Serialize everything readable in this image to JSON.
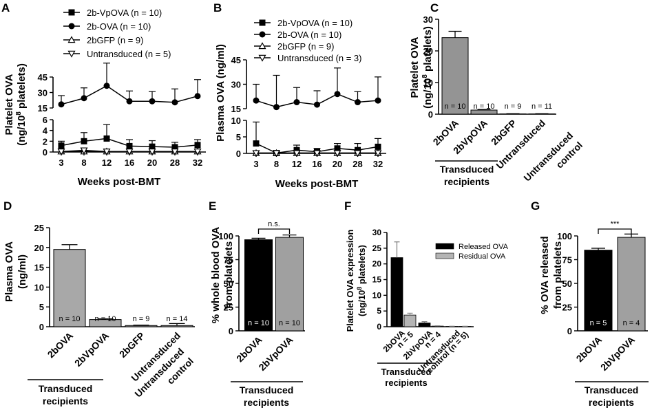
{
  "figure": {
    "background": "#ffffff"
  },
  "chart_data": [
    {
      "id": "A",
      "type": "line",
      "panel": "A",
      "ylabel": "Platelet OVA (ng/10⁸ platelets)",
      "ylabel_l1": "Platelet OVA",
      "ylabel_l2a": "(ng/10",
      "ylabel_l2sup": "8",
      "ylabel_l2b": " platelets)",
      "xlabel": "Weeks post-BMT",
      "categories": [
        "3",
        "8",
        "12",
        "16",
        "20",
        "28",
        "32"
      ],
      "yticks_upper": [
        "15",
        "30",
        "45"
      ],
      "yticks_lower": [
        "0",
        "2",
        "4",
        "6"
      ],
      "series": [
        {
          "name": "2b-VpOVA (n = 10)",
          "marker": "square",
          "values": [
            1.2,
            2.0,
            2.5,
            1.1,
            1.0,
            0.9,
            1.3
          ],
          "err": [
            0.8,
            1.6,
            2.6,
            1.2,
            1.1,
            0.9,
            1.0
          ]
        },
        {
          "name": "2b-OVA (n = 10)",
          "marker": "circle",
          "values": [
            18.5,
            24.5,
            36.5,
            21.5,
            21.5,
            20.5,
            26.5
          ],
          "err": [
            8.5,
            10.0,
            22.0,
            10.0,
            9.5,
            13.0,
            16.0
          ]
        },
        {
          "name": "2bGFP (n = 9)",
          "marker": "triangle-up",
          "values": [
            0.1,
            0.1,
            0.1,
            0.1,
            0.1,
            0.1,
            0.1
          ],
          "err": [
            0,
            0,
            0,
            0,
            0,
            0,
            0
          ]
        },
        {
          "name": "Untransduced (n = 5)",
          "marker": "triangle-down",
          "values": [
            0.1,
            0.3,
            0.1,
            0.1,
            0.1,
            0.1,
            0.1
          ],
          "err": [
            0,
            0,
            0,
            0,
            0,
            0,
            0
          ]
        }
      ]
    },
    {
      "id": "B",
      "type": "line",
      "panel": "B",
      "ylabel": "Plasma OVA (ng/ml)",
      "xlabel": "Weeks post-BMT",
      "categories": [
        "3",
        "8",
        "12",
        "16",
        "20",
        "28",
        "32"
      ],
      "yticks_upper": [
        "15",
        "30",
        "45"
      ],
      "yticks_lower": [
        "0",
        "5",
        "10"
      ],
      "series": [
        {
          "name": "2b-VpOVA (n = 10)",
          "marker": "square",
          "values": [
            3.0,
            0.1,
            1.0,
            0.5,
            1.5,
            1.0,
            2.0
          ],
          "err": [
            6.5,
            0.4,
            1.5,
            1.0,
            1.5,
            2.0,
            2.5
          ]
        },
        {
          "name": "2b-OVA (n = 10)",
          "marker": "circle",
          "values": [
            20.0,
            16.0,
            19.0,
            17.5,
            24.0,
            19.0,
            20.0
          ],
          "err": [
            10.0,
            19.5,
            9.0,
            8.5,
            16.0,
            6.5,
            14.5
          ]
        },
        {
          "name": "2bGFP (n = 9)",
          "marker": "triangle-up",
          "values": [
            0.1,
            0.1,
            0.1,
            0.1,
            0.1,
            0.1,
            0.1
          ],
          "err": [
            0,
            0,
            0,
            0,
            0,
            0,
            0
          ]
        },
        {
          "name": "Untransduced (n = 3)",
          "marker": "triangle-down",
          "values": [
            0.1,
            0.1,
            0.1,
            0.1,
            0.1,
            0.1,
            0.1
          ],
          "err": [
            0,
            0,
            0,
            0,
            0,
            0,
            0
          ]
        }
      ]
    },
    {
      "id": "C",
      "type": "bar",
      "panel": "C",
      "ylabel": "Platelet OVA (ng/10⁸ platelets)",
      "ylabel_l1": "Platelet OVA",
      "ylabel_l2a": "(ng/10",
      "ylabel_l2sup": "8",
      "ylabel_l2b": " platelets)",
      "categories": [
        "2bOVA",
        "2bVpOVA",
        "2bGFP",
        "Untransduced"
      ],
      "values": [
        24.2,
        1.3,
        0.1,
        0.1
      ],
      "err": [
        2.0,
        0.2,
        0.05,
        0.05
      ],
      "n_labels": [
        "n = 10",
        "n = 10",
        "n = 9",
        "n = 11"
      ],
      "colors": [
        "#949494",
        "#949494",
        "#949494",
        "#949494"
      ],
      "ylim": [
        0,
        30
      ],
      "yticks": [
        "0",
        "10",
        "20",
        "30"
      ],
      "group1_l1": "Transduced",
      "group1_l2": "recipients",
      "group2_l1": "Untransduced",
      "group2_l2": "control"
    },
    {
      "id": "D",
      "type": "bar",
      "panel": "D",
      "ylabel": "Plasma OVA (ng/ml)",
      "ylabel_l1": "Plasma OVA",
      "ylabel_l2": "(ng/ml)",
      "categories": [
        "2bOVA",
        "2bVpOVA",
        "2bGFP",
        "Untransduced"
      ],
      "values": [
        19.5,
        1.8,
        0.3,
        0.3
      ],
      "err": [
        1.2,
        0.2,
        0.1,
        0.5
      ],
      "n_labels": [
        "n = 10",
        "n = 10",
        "n = 9",
        "n = 14"
      ],
      "colors": [
        "#a8a8a8",
        "#a8a8a8",
        "#a8a8a8",
        "#a8a8a8"
      ],
      "ylim": [
        0,
        25
      ],
      "yticks": [
        "0",
        "5",
        "10",
        "15",
        "20",
        "25"
      ],
      "group1_l1": "Transduced",
      "group1_l2": "recipients",
      "group2_l1": "Untransduced",
      "group2_l2": "control"
    },
    {
      "id": "E",
      "type": "bar",
      "panel": "E",
      "ylabel": "% whole blood OVA from platelets",
      "ylabel_l1": "% whole blood OVA",
      "ylabel_l2": "from platelets",
      "categories": [
        "2bOVA",
        "2bVpOVA"
      ],
      "values": [
        96,
        98.5
      ],
      "err": [
        1.5,
        2.5
      ],
      "n_labels": [
        "n = 10",
        "n = 10"
      ],
      "colors": [
        "#000000",
        "#a0a0a0"
      ],
      "ylim": [
        0,
        100
      ],
      "yticks": [
        "0",
        "25",
        "50",
        "75",
        "100"
      ],
      "significance": "n.s.",
      "group1_l1": "Transduced",
      "group1_l2": "recipients"
    },
    {
      "id": "F",
      "type": "bar",
      "panel": "F",
      "ylabel": "Platelet OVA expression (ng/10⁸ platelets)",
      "ylabel_l1": "Platelet OVA expression",
      "ylabel_l2a": "(ng/10",
      "ylabel_l2sup": "8",
      "ylabel_l2b": " platelets)",
      "categories": [
        "2bOVA",
        "2bVpOVA",
        "Untransduced"
      ],
      "cat_sub": [
        "n = 5",
        "n = 4",
        "control (n = 5)"
      ],
      "series": [
        {
          "name": "Released OVA",
          "color": "#000000",
          "values": [
            22.0,
            1.2,
            0.1
          ],
          "err": [
            5.0,
            0.4,
            0.05
          ]
        },
        {
          "name": "Residual OVA",
          "color": "#b4b4b4",
          "values": [
            3.7,
            0.2,
            0.1
          ],
          "err": [
            0.6,
            0.1,
            0.05
          ]
        }
      ],
      "ylim": [
        0,
        30
      ],
      "yticks": [
        "0",
        "5",
        "10",
        "15",
        "20",
        "25",
        "30"
      ],
      "group1_l1": "Transduced",
      "group1_l2": "recipients"
    },
    {
      "id": "G",
      "type": "bar",
      "panel": "G",
      "ylabel": "% OVA released from platelets",
      "ylabel_l1": "% OVA released",
      "ylabel_l2": "from platelets",
      "categories": [
        "2bOVA",
        "2bVpOVA"
      ],
      "values": [
        85,
        98.5
      ],
      "err": [
        2,
        3.5
      ],
      "n_labels": [
        "n = 5",
        "n = 4"
      ],
      "colors": [
        "#000000",
        "#a0a0a0"
      ],
      "ylim": [
        0,
        100
      ],
      "yticks": [
        "0",
        "25",
        "50",
        "75",
        "100"
      ],
      "significance": "***",
      "group1_l1": "Transduced",
      "group1_l2": "recipients"
    }
  ]
}
